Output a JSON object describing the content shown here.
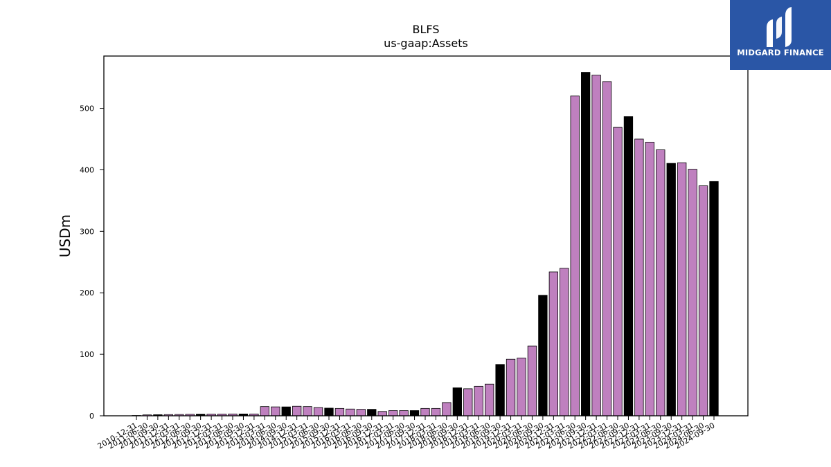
{
  "chart_data": {
    "type": "bar",
    "title": "BLFS",
    "subtitle": "us-gaap:Assets",
    "ylabel": "USDm",
    "ylim": [
      0,
      585
    ],
    "yticks": [
      0,
      100,
      200,
      300,
      400,
      500
    ],
    "grid": false,
    "colors": {
      "default": "#bf80bf",
      "highlight": "#000000",
      "edge": "#000000"
    },
    "highlight_rule": "fiscal year-end quarter (09-30) shown in black",
    "categories": [
      "2010-12-31",
      "2011-06-30",
      "2011-09-30",
      "2011-12-31",
      "2012-03-31",
      "2012-06-30",
      "2012-09-30",
      "2012-12-31",
      "2013-03-31",
      "2013-06-30",
      "2013-09-30",
      "2013-12-31",
      "2014-03-31",
      "2014-06-30",
      "2014-09-30",
      "2014-12-31",
      "2015-03-31",
      "2015-06-30",
      "2015-09-30",
      "2015-12-31",
      "2016-03-31",
      "2016-06-30",
      "2016-09-30",
      "2016-12-31",
      "2017-03-31",
      "2017-06-30",
      "2017-09-30",
      "2017-12-31",
      "2018-03-31",
      "2018-06-30",
      "2018-09-30",
      "2018-12-31",
      "2019-03-31",
      "2019-06-30",
      "2019-09-30",
      "2019-12-31",
      "2020-03-31",
      "2020-06-30",
      "2020-09-30",
      "2020-12-31",
      "2021-03-31",
      "2021-06-30",
      "2021-09-30",
      "2021-12-31",
      "2022-03-31",
      "2022-06-30",
      "2022-09-30",
      "2022-12-31",
      "2023-03-31",
      "2023-06-30",
      "2023-09-30",
      "2023-12-31",
      "2024-03-31",
      "2024-06-30",
      "2024-09-30"
    ],
    "values": [
      0.5,
      1.5,
      1.8,
      2.0,
      2.2,
      2.5,
      2.7,
      2.8,
      2.9,
      3.0,
      3.0,
      3.0,
      15.0,
      14.5,
      14.5,
      15.5,
      15.0,
      13.5,
      12.5,
      12.0,
      11.0,
      10.5,
      10.5,
      7.0,
      8.5,
      8.5,
      8.5,
      12.0,
      12.0,
      21.5,
      45.5,
      44.0,
      48.0,
      51.5,
      83.5,
      92.0,
      94.0,
      113.5,
      196.0,
      234.0,
      240.0,
      520.0,
      558.5,
      554.0,
      543.5,
      469.0,
      486.5,
      450.0,
      445.0,
      432.5,
      410.5,
      411.5,
      401.0,
      374.0,
      381.0
    ]
  },
  "logo": {
    "text": "MIDGARD FINANCE"
  }
}
